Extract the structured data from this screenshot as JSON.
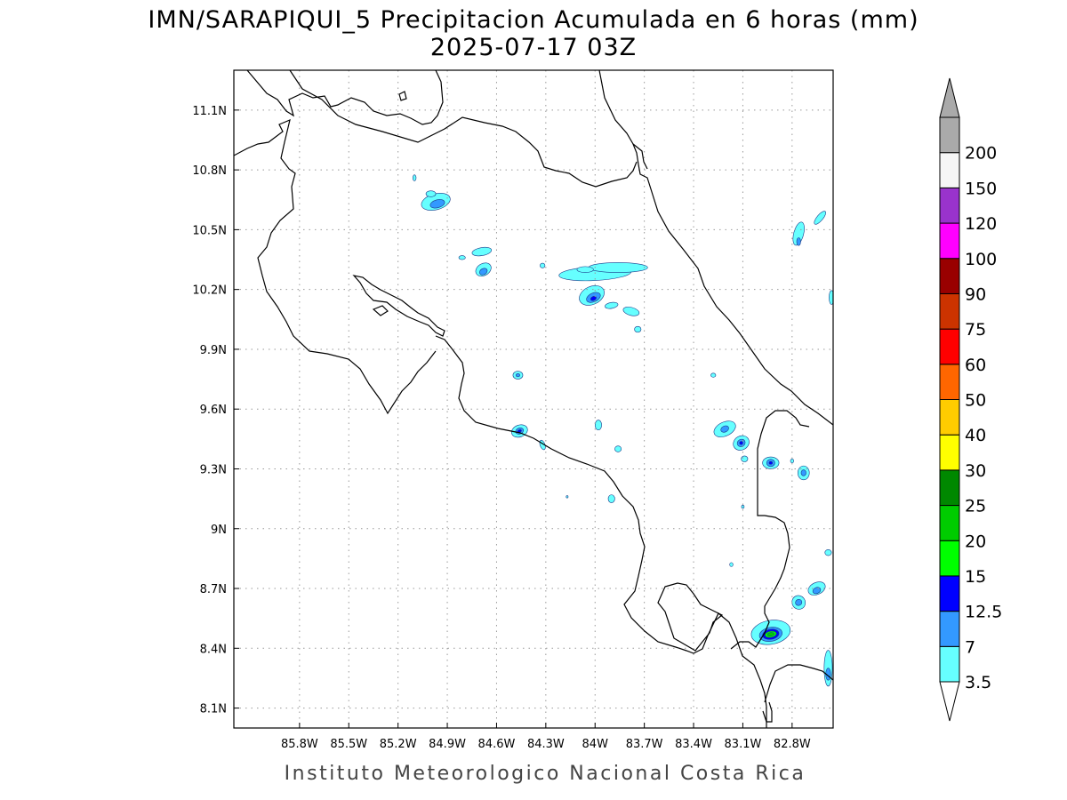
{
  "title": {
    "line1": "IMN/SARAPIQUI_5 Precipitacion Acumulada en 6 horas (mm)",
    "line2": "2025-07-17 03Z"
  },
  "footer": "Instituto Meteorologico Nacional Costa Rica",
  "map": {
    "lon_range": [
      -86.2,
      -82.55
    ],
    "lat_range": [
      8.0,
      11.3
    ],
    "lon_ticks": [
      {
        "value": -85.8,
        "label": "85.8W"
      },
      {
        "value": -85.5,
        "label": "85.5W"
      },
      {
        "value": -85.2,
        "label": "85.2W"
      },
      {
        "value": -84.9,
        "label": "84.9W"
      },
      {
        "value": -84.6,
        "label": "84.6W"
      },
      {
        "value": -84.3,
        "label": "84.3W"
      },
      {
        "value": -84.0,
        "label": "84W"
      },
      {
        "value": -83.7,
        "label": "83.7W"
      },
      {
        "value": -83.4,
        "label": "83.4W"
      },
      {
        "value": -83.1,
        "label": "83.1W"
      },
      {
        "value": -82.8,
        "label": "82.8W"
      }
    ],
    "lat_ticks": [
      {
        "value": 8.1,
        "label": "8.1N"
      },
      {
        "value": 8.4,
        "label": "8.4N"
      },
      {
        "value": 8.7,
        "label": "8.7N"
      },
      {
        "value": 9.0,
        "label": "9N"
      },
      {
        "value": 9.3,
        "label": "9.3N"
      },
      {
        "value": 9.6,
        "label": "9.6N"
      },
      {
        "value": 9.9,
        "label": "9.9N"
      },
      {
        "value": 10.2,
        "label": "10.2N"
      },
      {
        "value": 10.5,
        "label": "10.5N"
      },
      {
        "value": 10.8,
        "label": "10.8N"
      },
      {
        "value": 11.1,
        "label": "11.1N"
      }
    ],
    "grid": true
  },
  "colorbar": {
    "levels": [
      {
        "label": "3.5",
        "color": "#66ffff"
      },
      {
        "label": "7",
        "color": "#3399ff"
      },
      {
        "label": "12.5",
        "color": "#0000ff"
      },
      {
        "label": "15",
        "color": "#00ff00"
      },
      {
        "label": "20",
        "color": "#00cc00"
      },
      {
        "label": "25",
        "color": "#008800"
      },
      {
        "label": "30",
        "color": "#ffff00"
      },
      {
        "label": "40",
        "color": "#ffcc00"
      },
      {
        "label": "50",
        "color": "#ff6600"
      },
      {
        "label": "60",
        "color": "#ff0000"
      },
      {
        "label": "75",
        "color": "#cc3300"
      },
      {
        "label": "90",
        "color": "#990000"
      },
      {
        "label": "100",
        "color": "#ff00ff"
      },
      {
        "label": "120",
        "color": "#9933cc"
      },
      {
        "label": "150",
        "color": "#f5f5f5"
      },
      {
        "label": "200",
        "color": "#aaaaaa"
      }
    ]
  },
  "precip_cells": [
    {
      "lon": -84.0,
      "lat": 10.28,
      "rx": 0.22,
      "ry": 0.035,
      "rot": -3,
      "level": 0
    },
    {
      "lon": -83.86,
      "lat": 10.31,
      "rx": 0.18,
      "ry": 0.025,
      "rot": 0,
      "level": 0
    },
    {
      "lon": -84.02,
      "lat": 10.17,
      "rx": 0.08,
      "ry": 0.045,
      "rot": -25,
      "level": 0
    },
    {
      "lon": -84.01,
      "lat": 10.16,
      "rx": 0.045,
      "ry": 0.022,
      "rot": -25,
      "level": 1
    },
    {
      "lon": -84.01,
      "lat": 10.155,
      "rx": 0.018,
      "ry": 0.01,
      "rot": -25,
      "level": 2
    },
    {
      "lon": -83.9,
      "lat": 10.12,
      "rx": 0.04,
      "ry": 0.015,
      "rot": -10,
      "level": 0
    },
    {
      "lon": -83.78,
      "lat": 10.09,
      "rx": 0.05,
      "ry": 0.02,
      "rot": 15,
      "level": 0
    },
    {
      "lon": -83.74,
      "lat": 10.0,
      "rx": 0.02,
      "ry": 0.015,
      "rot": 0,
      "level": 0
    },
    {
      "lon": -84.06,
      "lat": 10.3,
      "rx": 0.05,
      "ry": 0.015,
      "rot": 0,
      "level": 0
    },
    {
      "lon": -84.97,
      "lat": 10.64,
      "rx": 0.09,
      "ry": 0.04,
      "rot": -15,
      "level": 0
    },
    {
      "lon": -84.96,
      "lat": 10.63,
      "rx": 0.045,
      "ry": 0.02,
      "rot": -15,
      "level": 1
    },
    {
      "lon": -85.0,
      "lat": 10.68,
      "rx": 0.03,
      "ry": 0.015,
      "rot": 0,
      "level": 0
    },
    {
      "lon": -84.68,
      "lat": 10.3,
      "rx": 0.05,
      "ry": 0.03,
      "rot": -30,
      "level": 0
    },
    {
      "lon": -84.68,
      "lat": 10.29,
      "rx": 0.025,
      "ry": 0.015,
      "rot": -30,
      "level": 1
    },
    {
      "lon": -84.69,
      "lat": 10.39,
      "rx": 0.06,
      "ry": 0.02,
      "rot": -10,
      "level": 0
    },
    {
      "lon": -84.81,
      "lat": 10.36,
      "rx": 0.02,
      "ry": 0.01,
      "rot": 0,
      "level": 0
    },
    {
      "lon": -84.32,
      "lat": 10.32,
      "rx": 0.015,
      "ry": 0.012,
      "rot": 0,
      "level": 0
    },
    {
      "lon": -85.1,
      "lat": 10.76,
      "rx": 0.01,
      "ry": 0.015,
      "rot": 0,
      "level": 0
    },
    {
      "lon": -84.46,
      "lat": 9.49,
      "rx": 0.05,
      "ry": 0.03,
      "rot": -20,
      "level": 0
    },
    {
      "lon": -84.46,
      "lat": 9.49,
      "rx": 0.025,
      "ry": 0.015,
      "rot": -20,
      "level": 1
    },
    {
      "lon": -84.46,
      "lat": 9.49,
      "rx": 0.012,
      "ry": 0.006,
      "rot": -20,
      "level": 2
    },
    {
      "lon": -84.47,
      "lat": 9.77,
      "rx": 0.03,
      "ry": 0.02,
      "rot": 0,
      "level": 0
    },
    {
      "lon": -84.47,
      "lat": 9.77,
      "rx": 0.012,
      "ry": 0.008,
      "rot": 0,
      "level": 1
    },
    {
      "lon": -84.32,
      "lat": 9.42,
      "rx": 0.015,
      "ry": 0.025,
      "rot": -20,
      "level": 0
    },
    {
      "lon": -83.98,
      "lat": 9.52,
      "rx": 0.02,
      "ry": 0.025,
      "rot": 0,
      "level": 0
    },
    {
      "lon": -83.86,
      "lat": 9.4,
      "rx": 0.02,
      "ry": 0.015,
      "rot": 0,
      "level": 0
    },
    {
      "lon": -83.9,
      "lat": 9.15,
      "rx": 0.02,
      "ry": 0.02,
      "rot": 0,
      "level": 0
    },
    {
      "lon": -84.17,
      "lat": 9.16,
      "rx": 0.006,
      "ry": 0.006,
      "rot": 0,
      "level": 0
    },
    {
      "lon": -83.21,
      "lat": 9.5,
      "rx": 0.07,
      "ry": 0.035,
      "rot": -25,
      "level": 0
    },
    {
      "lon": -83.21,
      "lat": 9.5,
      "rx": 0.025,
      "ry": 0.015,
      "rot": -25,
      "level": 1
    },
    {
      "lon": -83.11,
      "lat": 9.43,
      "rx": 0.05,
      "ry": 0.035,
      "rot": -30,
      "level": 0
    },
    {
      "lon": -83.11,
      "lat": 9.43,
      "rx": 0.025,
      "ry": 0.018,
      "rot": -30,
      "level": 1
    },
    {
      "lon": -83.11,
      "lat": 9.43,
      "rx": 0.01,
      "ry": 0.008,
      "rot": -30,
      "level": 2
    },
    {
      "lon": -83.09,
      "lat": 9.35,
      "rx": 0.02,
      "ry": 0.015,
      "rot": 0,
      "level": 0
    },
    {
      "lon": -82.93,
      "lat": 9.33,
      "rx": 0.05,
      "ry": 0.03,
      "rot": 0,
      "level": 0
    },
    {
      "lon": -82.93,
      "lat": 9.33,
      "rx": 0.025,
      "ry": 0.018,
      "rot": 0,
      "level": 1
    },
    {
      "lon": -82.93,
      "lat": 9.33,
      "rx": 0.01,
      "ry": 0.007,
      "rot": 0,
      "level": 2
    },
    {
      "lon": -82.8,
      "lat": 9.34,
      "rx": 0.01,
      "ry": 0.01,
      "rot": 0,
      "level": 0
    },
    {
      "lon": -82.73,
      "lat": 9.28,
      "rx": 0.035,
      "ry": 0.035,
      "rot": 0,
      "level": 0
    },
    {
      "lon": -82.73,
      "lat": 9.28,
      "rx": 0.015,
      "ry": 0.015,
      "rot": 0,
      "level": 1
    },
    {
      "lon": -83.28,
      "lat": 9.77,
      "rx": 0.015,
      "ry": 0.01,
      "rot": 0,
      "level": 0
    },
    {
      "lon": -83.1,
      "lat": 9.11,
      "rx": 0.008,
      "ry": 0.008,
      "rot": 0,
      "level": 0
    },
    {
      "lon": -83.17,
      "lat": 8.82,
      "rx": 0.01,
      "ry": 0.01,
      "rot": 0,
      "level": 0
    },
    {
      "lon": -82.58,
      "lat": 8.88,
      "rx": 0.02,
      "ry": 0.015,
      "rot": 0,
      "level": 0
    },
    {
      "lon": -82.65,
      "lat": 8.7,
      "rx": 0.055,
      "ry": 0.03,
      "rot": -25,
      "level": 0
    },
    {
      "lon": -82.65,
      "lat": 8.69,
      "rx": 0.025,
      "ry": 0.015,
      "rot": -25,
      "level": 1
    },
    {
      "lon": -82.76,
      "lat": 8.63,
      "rx": 0.04,
      "ry": 0.035,
      "rot": -30,
      "level": 0
    },
    {
      "lon": -82.76,
      "lat": 8.63,
      "rx": 0.02,
      "ry": 0.015,
      "rot": -30,
      "level": 1
    },
    {
      "lon": -82.93,
      "lat": 8.48,
      "rx": 0.12,
      "ry": 0.06,
      "rot": -10,
      "level": 0
    },
    {
      "lon": -82.93,
      "lat": 8.47,
      "rx": 0.07,
      "ry": 0.035,
      "rot": -10,
      "level": 1
    },
    {
      "lon": -82.93,
      "lat": 8.47,
      "rx": 0.05,
      "ry": 0.025,
      "rot": -10,
      "level": 2
    },
    {
      "lon": -82.93,
      "lat": 8.47,
      "rx": 0.035,
      "ry": 0.016,
      "rot": -10,
      "level": 3
    },
    {
      "lon": -82.93,
      "lat": 8.47,
      "rx": 0.02,
      "ry": 0.009,
      "rot": -10,
      "level": 4
    },
    {
      "lon": -82.58,
      "lat": 8.3,
      "rx": 0.025,
      "ry": 0.09,
      "rot": 0,
      "level": 0
    },
    {
      "lon": -82.58,
      "lat": 8.27,
      "rx": 0.015,
      "ry": 0.03,
      "rot": 0,
      "level": 1
    },
    {
      "lon": -82.56,
      "lat": 10.16,
      "rx": 0.015,
      "ry": 0.035,
      "rot": 0,
      "level": 0
    },
    {
      "lon": -82.76,
      "lat": 10.48,
      "rx": 0.03,
      "ry": 0.06,
      "rot": 15,
      "level": 0
    },
    {
      "lon": -82.76,
      "lat": 10.44,
      "rx": 0.012,
      "ry": 0.02,
      "rot": 0,
      "level": 1
    },
    {
      "lon": -82.63,
      "lat": 10.56,
      "rx": 0.05,
      "ry": 0.015,
      "rot": -50,
      "level": 0
    }
  ]
}
